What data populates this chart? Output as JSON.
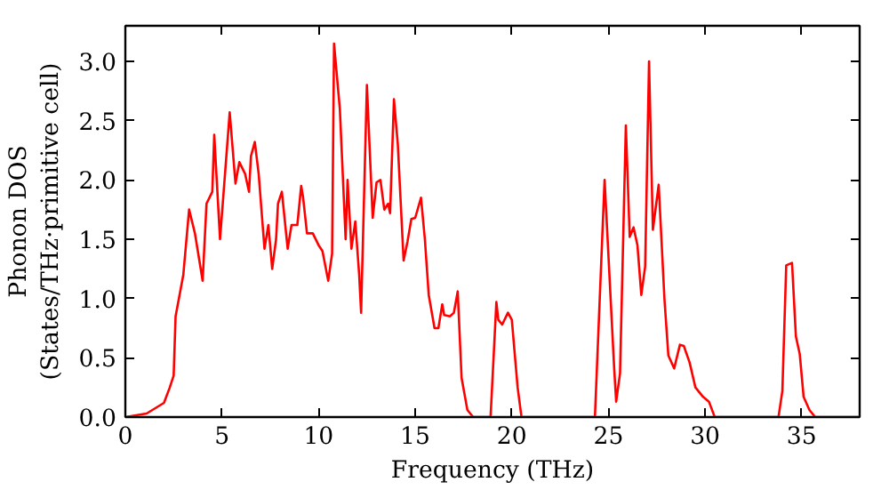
{
  "chart_data": {
    "type": "line",
    "xlabel": "Frequency (THz)",
    "ylabel": "Phonon DOS\n(States/THz·primitive cell)",
    "xlim": [
      0,
      38
    ],
    "ylim": [
      0,
      3.3
    ],
    "xticks": [
      0,
      5,
      10,
      15,
      20,
      25,
      30,
      35
    ],
    "yticks": [
      {
        "value": 0,
        "label": "0.0"
      },
      {
        "value": 0.5,
        "label": "0.5"
      },
      {
        "value": 1,
        "label": "1.0"
      },
      {
        "value": 1.5,
        "label": "1.5"
      },
      {
        "value": 2,
        "label": "2.0"
      },
      {
        "value": 2.5,
        "label": "2.5"
      },
      {
        "value": 3,
        "label": "3.0"
      }
    ],
    "grid": false,
    "marker": "none",
    "line_style": "solid",
    "series": [
      {
        "color": "#ff0000",
        "x": [
          0,
          1.1,
          2.0,
          2.3,
          2.5,
          2.6,
          3.0,
          3.3,
          3.6,
          4.0,
          4.2,
          4.5,
          4.6,
          4.9,
          5.4,
          5.7,
          5.9,
          6.2,
          6.4,
          6.5,
          6.7,
          6.9,
          7.2,
          7.4,
          7.6,
          7.8,
          7.9,
          8.1,
          8.4,
          8.6,
          8.9,
          9.1,
          9.2,
          9.4,
          9.7,
          10.0,
          10.2,
          10.5,
          10.7,
          10.8,
          11.1,
          11.4,
          11.5,
          11.7,
          11.9,
          12.1,
          12.2,
          12.5,
          12.8,
          13.0,
          13.2,
          13.4,
          13.6,
          13.7,
          13.9,
          14.1,
          14.4,
          14.6,
          14.8,
          15.0,
          15.3,
          15.5,
          15.7,
          16.0,
          16.2,
          16.4,
          16.5,
          16.8,
          17.0,
          17.2,
          17.4,
          17.7,
          18.0,
          18.9,
          19.2,
          19.3,
          19.5,
          19.8,
          20.0,
          20.3,
          20.5,
          24.3,
          24.8,
          25.3,
          25.4,
          25.6,
          25.9,
          26.1,
          26.3,
          26.5,
          26.7,
          26.9,
          27.1,
          27.3,
          27.6,
          27.9,
          28.1,
          28.4,
          28.7,
          28.9,
          29.2,
          29.5,
          29.9,
          30.2,
          30.5,
          33.8,
          34.0,
          34.2,
          34.5,
          34.7,
          34.9,
          35.1,
          35.4,
          35.7,
          38
        ],
        "values": [
          0,
          0.03,
          0.12,
          0.25,
          0.35,
          0.85,
          1.2,
          1.75,
          1.55,
          1.15,
          1.8,
          1.9,
          2.38,
          1.5,
          2.57,
          1.97,
          2.15,
          2.05,
          1.9,
          2.2,
          2.32,
          2.05,
          1.42,
          1.62,
          1.25,
          1.5,
          1.8,
          1.9,
          1.42,
          1.62,
          1.62,
          1.95,
          1.85,
          1.55,
          1.55,
          1.45,
          1.4,
          1.15,
          1.38,
          3.15,
          2.6,
          1.5,
          2.0,
          1.42,
          1.65,
          1.2,
          0.88,
          2.8,
          1.68,
          1.98,
          2.0,
          1.75,
          1.8,
          1.72,
          2.68,
          2.3,
          1.32,
          1.48,
          1.67,
          1.68,
          1.85,
          1.5,
          1.03,
          0.75,
          0.75,
          0.95,
          0.86,
          0.85,
          0.88,
          1.06,
          0.33,
          0.06,
          0,
          0,
          0.97,
          0.82,
          0.78,
          0.88,
          0.82,
          0.25,
          0,
          0,
          2.0,
          0.4,
          0.13,
          0.37,
          2.46,
          1.52,
          1.6,
          1.45,
          1.03,
          1.27,
          3.0,
          1.58,
          1.96,
          0.99,
          0.52,
          0.41,
          0.61,
          0.6,
          0.46,
          0.25,
          0.17,
          0.13,
          0,
          0,
          0.22,
          1.28,
          1.3,
          0.68,
          0.53,
          0.17,
          0.06,
          0,
          0
        ]
      }
    ]
  }
}
